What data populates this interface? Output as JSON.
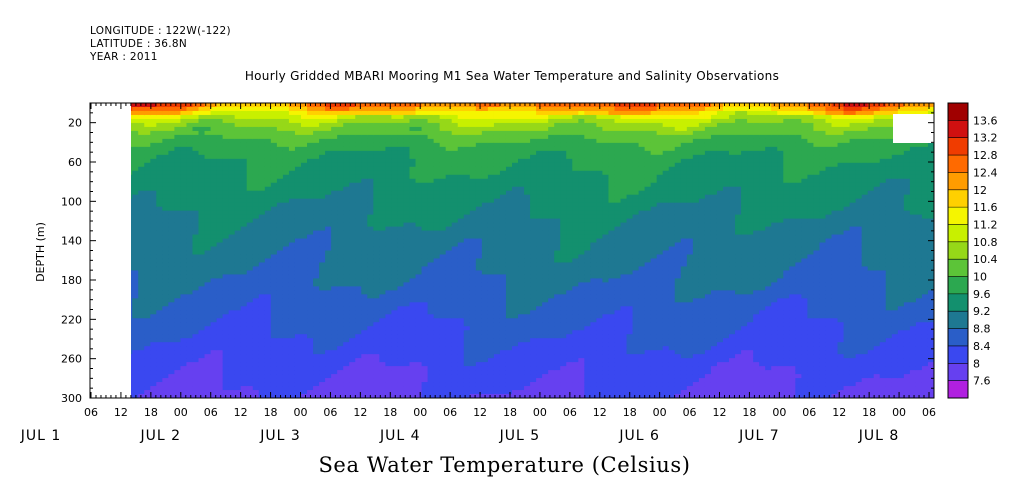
{
  "header": {
    "longitude": "LONGITUDE : 122W(-122)",
    "latitude": "LATITUDE : 36.8N",
    "year": "YEAR : 2011"
  },
  "footer_label": "Sea Water Temperature (Celsius)",
  "chart_data": {
    "type": "heatmap",
    "title": "Hourly Gridded MBARI Mooring M1 Sea Water Temperature and Salinity Observations",
    "ylabel": "DEPTH (m)",
    "xlabel": "",
    "y_range": [
      0,
      300
    ],
    "y_inverted": true,
    "y_ticks": [
      20,
      60,
      100,
      140,
      180,
      220,
      260,
      300
    ],
    "x_hour_ticks": [
      "06",
      "12",
      "18",
      "00",
      "06",
      "12",
      "18",
      "00",
      "06",
      "12",
      "18",
      "00",
      "06",
      "12",
      "18",
      "00",
      "06",
      "12",
      "18",
      "00",
      "06",
      "12",
      "18",
      "00",
      "06",
      "12",
      "18",
      "00",
      "06"
    ],
    "x_day_labels": [
      "JUL 1",
      "JUL 2",
      "JUL 3",
      "JUL 4",
      "JUL 5",
      "JUL 6",
      "JUL 7",
      "JUL 8"
    ],
    "data_start": "JUL 1 12:00",
    "colorbar": {
      "levels": [
        "13.6",
        "13.2",
        "12.8",
        "12.4",
        "12",
        "11.6",
        "11.2",
        "10.8",
        "10.4",
        "10",
        "9.6",
        "9.2",
        "8.8",
        "8.4",
        "8",
        "7.6"
      ],
      "colors": [
        "#a00000",
        "#d01010",
        "#f03c00",
        "#ff6a00",
        "#ff9c00",
        "#ffd000",
        "#f5f500",
        "#c8f000",
        "#96d818",
        "#5cc438",
        "#2ca850",
        "#13906e",
        "#1e7892",
        "#2a5ec8",
        "#3a48f0",
        "#6640f0",
        "#b020e0"
      ]
    },
    "profile": [
      {
        "depth": 0,
        "temp": 12.5
      },
      {
        "depth": 10,
        "temp": 11.4
      },
      {
        "depth": 20,
        "temp": 10.6
      },
      {
        "depth": 40,
        "temp": 9.9
      },
      {
        "depth": 60,
        "temp": 9.6
      },
      {
        "depth": 100,
        "temp": 9.3
      },
      {
        "depth": 140,
        "temp": 9.0
      },
      {
        "depth": 180,
        "temp": 8.8
      },
      {
        "depth": 220,
        "temp": 8.5
      },
      {
        "depth": 260,
        "temp": 8.2
      },
      {
        "depth": 300,
        "temp": 7.9
      }
    ],
    "grid": false,
    "legend": "right"
  }
}
